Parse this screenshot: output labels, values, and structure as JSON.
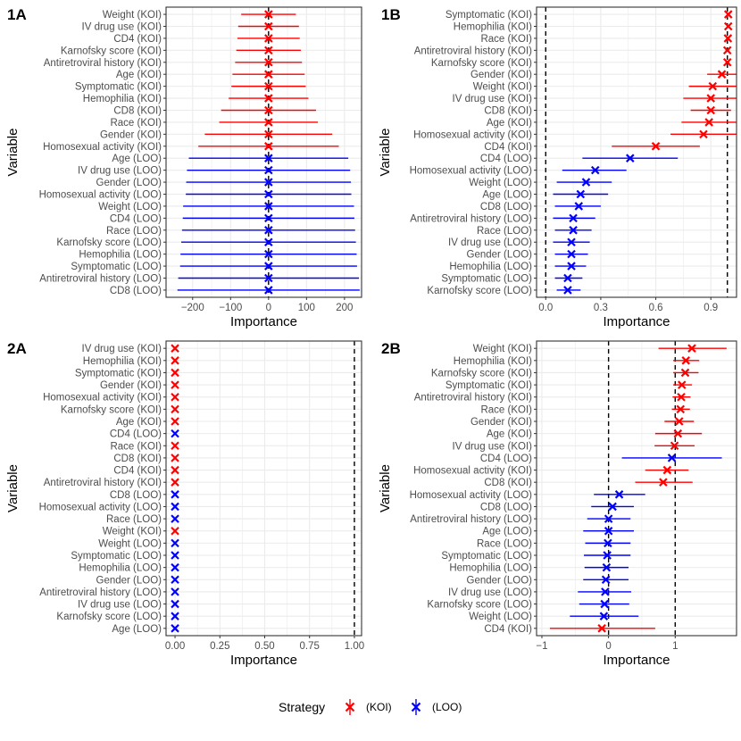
{
  "colors": {
    "KOI": "#ff0000",
    "LOO": "#0000ff",
    "grid": "#ebebeb",
    "border": "#333333",
    "refline": "#000000"
  },
  "legend": {
    "title": "Strategy",
    "items": [
      {
        "key": "KOI",
        "label": "(KOI)"
      },
      {
        "key": "LOO",
        "label": "(LOO)"
      }
    ]
  },
  "chart_data": [
    {
      "id": "1A",
      "label": "1A",
      "type": "scatter",
      "xlabel": "Importance",
      "ylabel": "Variable",
      "xlim": [
        -270,
        245
      ],
      "xticks": [
        -200,
        -100,
        0,
        100,
        200
      ],
      "xtick_labels": [
        "−200",
        "−100",
        "0",
        "100",
        "200"
      ],
      "reference_lines": [
        0
      ],
      "points": [
        {
          "label": "Weight (KOI)",
          "group": "KOI",
          "value": 0,
          "lower": -72,
          "upper": 72
        },
        {
          "label": "IV drug use (KOI)",
          "group": "KOI",
          "value": 0,
          "lower": -80,
          "upper": 80
        },
        {
          "label": "CD4 (KOI)",
          "group": "KOI",
          "value": 0,
          "lower": -82,
          "upper": 82
        },
        {
          "label": "Karnofsky score (KOI)",
          "group": "KOI",
          "value": 0,
          "lower": -85,
          "upper": 85
        },
        {
          "label": "Antiretroviral history (KOI)",
          "group": "KOI",
          "value": 0,
          "lower": -88,
          "upper": 88
        },
        {
          "label": "Age (KOI)",
          "group": "KOI",
          "value": 0,
          "lower": -95,
          "upper": 95
        },
        {
          "label": "Symptomatic (KOI)",
          "group": "KOI",
          "value": 0,
          "lower": -98,
          "upper": 98
        },
        {
          "label": "Hemophilia (KOI)",
          "group": "KOI",
          "value": 0,
          "lower": -105,
          "upper": 105
        },
        {
          "label": "CD8 (KOI)",
          "group": "KOI",
          "value": 0,
          "lower": -125,
          "upper": 125
        },
        {
          "label": "Race (KOI)",
          "group": "KOI",
          "value": 0,
          "lower": -130,
          "upper": 130
        },
        {
          "label": "Gender (KOI)",
          "group": "KOI",
          "value": 0,
          "lower": -168,
          "upper": 168
        },
        {
          "label": "Homosexual activity (KOI)",
          "group": "KOI",
          "value": 0,
          "lower": -185,
          "upper": 185
        },
        {
          "label": "Age (LOO)",
          "group": "LOO",
          "value": 0,
          "lower": -210,
          "upper": 210
        },
        {
          "label": "IV drug use (LOO)",
          "group": "LOO",
          "value": 0,
          "lower": -215,
          "upper": 215
        },
        {
          "label": "Gender (LOO)",
          "group": "LOO",
          "value": 0,
          "lower": -217,
          "upper": 217
        },
        {
          "label": "Homosexual activity (LOO)",
          "group": "LOO",
          "value": 0,
          "lower": -218,
          "upper": 218
        },
        {
          "label": "Weight (LOO)",
          "group": "LOO",
          "value": 0,
          "lower": -225,
          "upper": 225
        },
        {
          "label": "CD4 (LOO)",
          "group": "LOO",
          "value": 0,
          "lower": -226,
          "upper": 226
        },
        {
          "label": "Race (LOO)",
          "group": "LOO",
          "value": 0,
          "lower": -228,
          "upper": 228
        },
        {
          "label": "Karnofsky score (LOO)",
          "group": "LOO",
          "value": 0,
          "lower": -230,
          "upper": 230
        },
        {
          "label": "Hemophilia (LOO)",
          "group": "LOO",
          "value": 0,
          "lower": -232,
          "upper": 232
        },
        {
          "label": "Symptomatic (LOO)",
          "group": "LOO",
          "value": 0,
          "lower": -233,
          "upper": 233
        },
        {
          "label": "Antiretroviral history (LOO)",
          "group": "LOO",
          "value": 0,
          "lower": -238,
          "upper": 238
        },
        {
          "label": "CD8 (LOO)",
          "group": "LOO",
          "value": 0,
          "lower": -240,
          "upper": 240
        }
      ]
    },
    {
      "id": "1B",
      "label": "1B",
      "type": "scatter",
      "xlabel": "Importance",
      "ylabel": "Variable",
      "xlim": [
        -0.05,
        1.04
      ],
      "xticks": [
        0.0,
        0.3,
        0.6,
        0.9
      ],
      "xtick_labels": [
        "0.0",
        "0.3",
        "0.6",
        "0.9"
      ],
      "reference_lines": [
        0,
        0.99
      ],
      "points": [
        {
          "label": "Symptomatic (KOI)",
          "group": "KOI",
          "value": 0.995,
          "lower": 0.99,
          "upper": 1.0
        },
        {
          "label": "Hemophilia (KOI)",
          "group": "KOI",
          "value": 0.995,
          "lower": 0.99,
          "upper": 1.0
        },
        {
          "label": "Race (KOI)",
          "group": "KOI",
          "value": 0.993,
          "lower": 0.988,
          "upper": 0.998
        },
        {
          "label": "Antiretroviral history (KOI)",
          "group": "KOI",
          "value": 0.99,
          "lower": 0.98,
          "upper": 1.0
        },
        {
          "label": "Karnofsky score (KOI)",
          "group": "KOI",
          "value": 0.99,
          "lower": 0.98,
          "upper": 1.0
        },
        {
          "label": "Gender (KOI)",
          "group": "KOI",
          "value": 0.96,
          "lower": 0.88,
          "upper": 1.04
        },
        {
          "label": "Weight (KOI)",
          "group": "KOI",
          "value": 0.91,
          "lower": 0.78,
          "upper": 1.04
        },
        {
          "label": "IV drug use (KOI)",
          "group": "KOI",
          "value": 0.9,
          "lower": 0.75,
          "upper": 1.05
        },
        {
          "label": "CD8 (KOI)",
          "group": "KOI",
          "value": 0.9,
          "lower": 0.79,
          "upper": 1.01
        },
        {
          "label": "Age (KOI)",
          "group": "KOI",
          "value": 0.89,
          "lower": 0.74,
          "upper": 1.04
        },
        {
          "label": "Homosexual activity (KOI)",
          "group": "KOI",
          "value": 0.86,
          "lower": 0.68,
          "upper": 1.04
        },
        {
          "label": "CD4 (KOI)",
          "group": "KOI",
          "value": 0.6,
          "lower": 0.36,
          "upper": 0.84
        },
        {
          "label": "CD4 (LOO)",
          "group": "LOO",
          "value": 0.46,
          "lower": 0.2,
          "upper": 0.72
        },
        {
          "label": "Homosexual activity (LOO)",
          "group": "LOO",
          "value": 0.27,
          "lower": 0.09,
          "upper": 0.44
        },
        {
          "label": "Weight (LOO)",
          "group": "LOO",
          "value": 0.22,
          "lower": 0.06,
          "upper": 0.36
        },
        {
          "label": "Age (LOO)",
          "group": "LOO",
          "value": 0.19,
          "lower": 0.04,
          "upper": 0.34
        },
        {
          "label": "CD8 (LOO)",
          "group": "LOO",
          "value": 0.18,
          "lower": 0.05,
          "upper": 0.3
        },
        {
          "label": "Antiretroviral history (LOO)",
          "group": "LOO",
          "value": 0.15,
          "lower": 0.04,
          "upper": 0.27
        },
        {
          "label": "Race (LOO)",
          "group": "LOO",
          "value": 0.15,
          "lower": 0.05,
          "upper": 0.25
        },
        {
          "label": "IV drug use (LOO)",
          "group": "LOO",
          "value": 0.14,
          "lower": 0.04,
          "upper": 0.24
        },
        {
          "label": "Gender (LOO)",
          "group": "LOO",
          "value": 0.14,
          "lower": 0.05,
          "upper": 0.23
        },
        {
          "label": "Hemophilia (LOO)",
          "group": "LOO",
          "value": 0.14,
          "lower": 0.05,
          "upper": 0.22
        },
        {
          "label": "Symptomatic (LOO)",
          "group": "LOO",
          "value": 0.12,
          "lower": 0.05,
          "upper": 0.2
        },
        {
          "label": "Karnofsky score (LOO)",
          "group": "LOO",
          "value": 0.12,
          "lower": 0.06,
          "upper": 0.19
        }
      ]
    },
    {
      "id": "2A",
      "label": "2A",
      "type": "scatter",
      "xlabel": "Importance",
      "ylabel": "Variable",
      "xlim": [
        -0.05,
        1.04
      ],
      "xticks": [
        0.0,
        0.25,
        0.5,
        0.75,
        1.0
      ],
      "xtick_labels": [
        "0.00",
        "0.25",
        "0.50",
        "0.75",
        "1.00"
      ],
      "reference_lines": [
        1.0
      ],
      "points": [
        {
          "label": "IV drug use (KOI)",
          "group": "KOI",
          "value": 0.0,
          "lower": 0.0,
          "upper": 0.0
        },
        {
          "label": "Hemophilia (KOI)",
          "group": "KOI",
          "value": 0.0,
          "lower": 0.0,
          "upper": 0.0
        },
        {
          "label": "Symptomatic (KOI)",
          "group": "KOI",
          "value": 0.0,
          "lower": 0.0,
          "upper": 0.0
        },
        {
          "label": "Gender (KOI)",
          "group": "KOI",
          "value": 0.0,
          "lower": 0.0,
          "upper": 0.0
        },
        {
          "label": "Homosexual activity (KOI)",
          "group": "KOI",
          "value": 0.0,
          "lower": 0.0,
          "upper": 0.0
        },
        {
          "label": "Karnofsky score (KOI)",
          "group": "KOI",
          "value": 0.0,
          "lower": 0.0,
          "upper": 0.0
        },
        {
          "label": "Age (KOI)",
          "group": "KOI",
          "value": 0.0,
          "lower": 0.0,
          "upper": 0.0
        },
        {
          "label": "CD4 (LOO)",
          "group": "LOO",
          "value": 0.0,
          "lower": 0.0,
          "upper": 0.0
        },
        {
          "label": "Race (KOI)",
          "group": "KOI",
          "value": 0.0,
          "lower": 0.0,
          "upper": 0.0
        },
        {
          "label": "CD8 (KOI)",
          "group": "KOI",
          "value": 0.0,
          "lower": 0.0,
          "upper": 0.0
        },
        {
          "label": "CD4 (KOI)",
          "group": "KOI",
          "value": 0.0,
          "lower": 0.0,
          "upper": 0.0
        },
        {
          "label": "Antiretroviral history (KOI)",
          "group": "KOI",
          "value": 0.0,
          "lower": 0.0,
          "upper": 0.0
        },
        {
          "label": "CD8 (LOO)",
          "group": "LOO",
          "value": 0.0,
          "lower": 0.0,
          "upper": 0.0
        },
        {
          "label": "Homosexual activity (LOO)",
          "group": "LOO",
          "value": 0.0,
          "lower": 0.0,
          "upper": 0.0
        },
        {
          "label": "Race (LOO)",
          "group": "LOO",
          "value": 0.0,
          "lower": 0.0,
          "upper": 0.0
        },
        {
          "label": "Weight (KOI)",
          "group": "KOI",
          "value": 0.0,
          "lower": 0.0,
          "upper": 0.0
        },
        {
          "label": "Weight (LOO)",
          "group": "LOO",
          "value": 0.0,
          "lower": 0.0,
          "upper": 0.0
        },
        {
          "label": "Symptomatic (LOO)",
          "group": "LOO",
          "value": 0.0,
          "lower": 0.0,
          "upper": 0.0
        },
        {
          "label": "Hemophilia (LOO)",
          "group": "LOO",
          "value": 0.0,
          "lower": 0.0,
          "upper": 0.0
        },
        {
          "label": "Gender (LOO)",
          "group": "LOO",
          "value": 0.0,
          "lower": 0.0,
          "upper": 0.0
        },
        {
          "label": "Antiretroviral history (LOO)",
          "group": "LOO",
          "value": 0.0,
          "lower": 0.0,
          "upper": 0.0
        },
        {
          "label": "IV drug use (LOO)",
          "group": "LOO",
          "value": 0.0,
          "lower": 0.0,
          "upper": 0.0
        },
        {
          "label": "Karnofsky score (LOO)",
          "group": "LOO",
          "value": 0.0,
          "lower": 0.0,
          "upper": 0.0
        },
        {
          "label": "Age (LOO)",
          "group": "LOO",
          "value": 0.0,
          "lower": 0.0,
          "upper": 0.0
        }
      ]
    },
    {
      "id": "2B",
      "label": "2B",
      "type": "scatter",
      "xlabel": "Importance",
      "ylabel": "Variable",
      "xlim": [
        -1.08,
        1.92
      ],
      "xticks": [
        -1,
        0,
        1
      ],
      "xtick_labels": [
        "−1",
        "0",
        "1"
      ],
      "reference_lines": [
        0,
        1
      ],
      "points": [
        {
          "label": "Weight (KOI)",
          "group": "KOI",
          "value": 1.25,
          "lower": 0.75,
          "upper": 1.77
        },
        {
          "label": "Hemophilia (KOI)",
          "group": "KOI",
          "value": 1.16,
          "lower": 0.97,
          "upper": 1.36
        },
        {
          "label": "Karnofsky score (KOI)",
          "group": "KOI",
          "value": 1.15,
          "lower": 0.97,
          "upper": 1.35
        },
        {
          "label": "Symptomatic (KOI)",
          "group": "KOI",
          "value": 1.1,
          "lower": 0.97,
          "upper": 1.25
        },
        {
          "label": "Antiretroviral history (KOI)",
          "group": "KOI",
          "value": 1.09,
          "lower": 0.96,
          "upper": 1.23
        },
        {
          "label": "Race (KOI)",
          "group": "KOI",
          "value": 1.08,
          "lower": 0.95,
          "upper": 1.22
        },
        {
          "label": "Gender (KOI)",
          "group": "KOI",
          "value": 1.06,
          "lower": 0.84,
          "upper": 1.28
        },
        {
          "label": "Age (KOI)",
          "group": "KOI",
          "value": 1.04,
          "lower": 0.7,
          "upper": 1.4
        },
        {
          "label": "IV drug use (KOI)",
          "group": "KOI",
          "value": 0.99,
          "lower": 0.69,
          "upper": 1.29
        },
        {
          "label": "CD4 (LOO)",
          "group": "LOO",
          "value": 0.95,
          "lower": 0.2,
          "upper": 1.7
        },
        {
          "label": "Homosexual activity (KOI)",
          "group": "KOI",
          "value": 0.88,
          "lower": 0.55,
          "upper": 1.2
        },
        {
          "label": "CD8 (KOI)",
          "group": "KOI",
          "value": 0.82,
          "lower": 0.4,
          "upper": 1.26
        },
        {
          "label": "Homosexual activity (LOO)",
          "group": "LOO",
          "value": 0.16,
          "lower": -0.22,
          "upper": 0.55
        },
        {
          "label": "CD8 (LOO)",
          "group": "LOO",
          "value": 0.06,
          "lower": -0.26,
          "upper": 0.38
        },
        {
          "label": "Antiretroviral history (LOO)",
          "group": "LOO",
          "value": 0.0,
          "lower": -0.32,
          "upper": 0.33
        },
        {
          "label": "Age (LOO)",
          "group": "LOO",
          "value": 0.0,
          "lower": -0.38,
          "upper": 0.38
        },
        {
          "label": "Race (LOO)",
          "group": "LOO",
          "value": -0.01,
          "lower": -0.35,
          "upper": 0.33
        },
        {
          "label": "Symptomatic (LOO)",
          "group": "LOO",
          "value": -0.02,
          "lower": -0.37,
          "upper": 0.33
        },
        {
          "label": "Hemophilia (LOO)",
          "group": "LOO",
          "value": -0.03,
          "lower": -0.36,
          "upper": 0.3
        },
        {
          "label": "Gender (LOO)",
          "group": "LOO",
          "value": -0.04,
          "lower": -0.38,
          "upper": 0.3
        },
        {
          "label": "IV drug use (LOO)",
          "group": "LOO",
          "value": -0.05,
          "lower": -0.46,
          "upper": 0.34
        },
        {
          "label": "Karnofsky score (LOO)",
          "group": "LOO",
          "value": -0.06,
          "lower": -0.44,
          "upper": 0.31
        },
        {
          "label": "Weight (LOO)",
          "group": "LOO",
          "value": -0.07,
          "lower": -0.58,
          "upper": 0.45
        },
        {
          "label": "CD4 (KOI)",
          "group": "KOI",
          "value": -0.1,
          "lower": -0.88,
          "upper": 0.7
        }
      ]
    }
  ]
}
